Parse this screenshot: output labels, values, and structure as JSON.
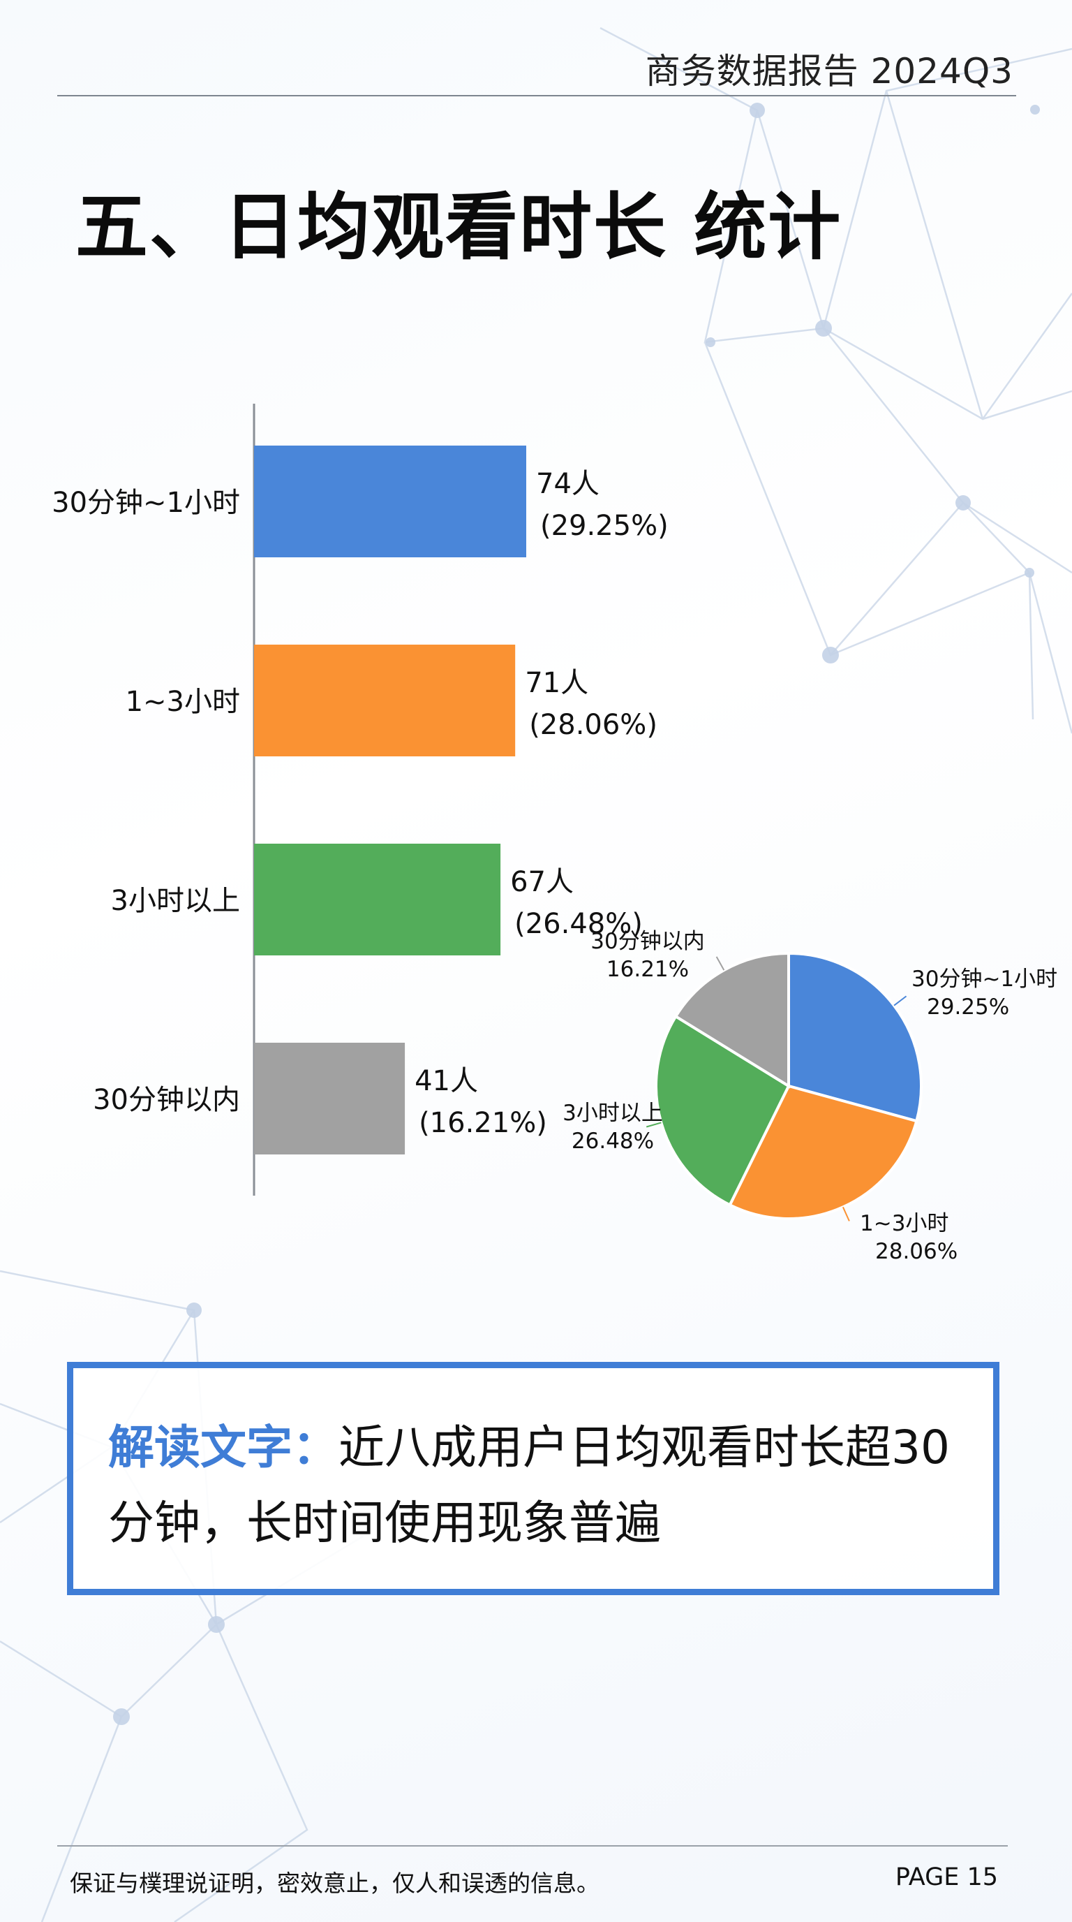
{
  "header": {
    "title": "商务数据报告 2024Q3"
  },
  "page_title": "五、日均观看时长 统计",
  "colors": {
    "blue": "#4a86d9",
    "orange": "#fa9233",
    "green": "#53ad5a",
    "gray": "#a1a1a1",
    "accent": "#3f7dd6"
  },
  "chart_data": [
    {
      "type": "bar",
      "orientation": "horizontal",
      "categories": [
        "30分钟~1小时",
        "1~3小时",
        "3小时以上",
        "30分钟以内"
      ],
      "values": [
        74,
        71,
        67,
        41
      ],
      "percents": [
        "29.25%",
        "28.06%",
        "26.48%",
        "16.21%"
      ],
      "value_labels": [
        "74人",
        "71人",
        "67人",
        "41人"
      ],
      "percent_labels": [
        "(29.25%)",
        "(28.06%)",
        "(26.48%)",
        "(16.21%)"
      ],
      "colors": [
        "#4a86d9",
        "#fa9233",
        "#53ad5a",
        "#a1a1a1"
      ],
      "grid": false,
      "legend": "none"
    },
    {
      "type": "pie",
      "labels": [
        "30分钟~1小时",
        "1~3小时",
        "3小时以上",
        "30分钟以内"
      ],
      "values": [
        29.25,
        28.06,
        26.48,
        16.21
      ],
      "percent_labels": [
        "29.25%",
        "28.06%",
        "26.48%",
        "16.21%"
      ],
      "colors": [
        "#4a86d9",
        "#fa9233",
        "#53ad5a",
        "#a1a1a1"
      ],
      "start": "12 o'clock",
      "direction": "clockwise",
      "legend": "none"
    }
  ],
  "insight": {
    "label": "解读文字：",
    "text": "近八成用户日均观看时长超30分钟，长时间使用现象普遍"
  },
  "footer": {
    "note": "保证与樸理说证明，密效意止，仅人和误透的信息。",
    "page": "PAGE 15"
  }
}
